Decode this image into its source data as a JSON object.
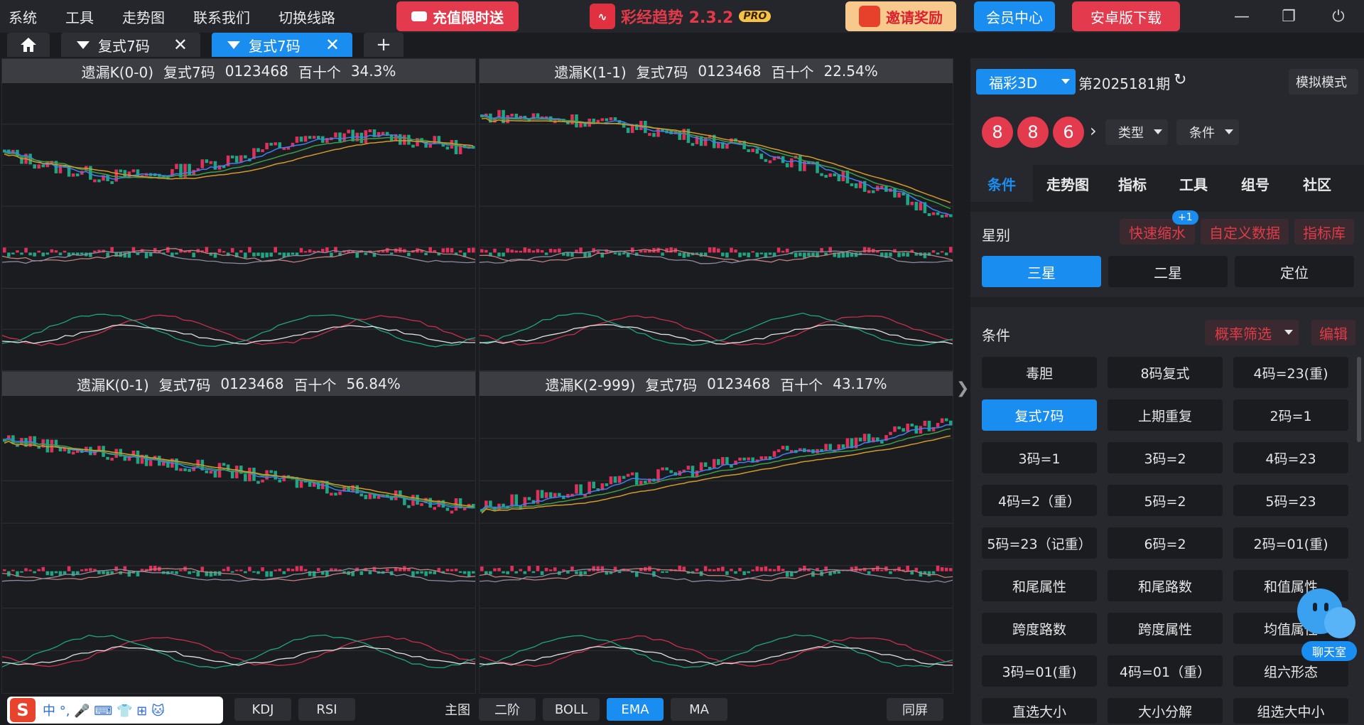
{
  "menu": [
    "系统",
    "工具",
    "走势图",
    "联系我们",
    "切换线路"
  ],
  "promo_left": "充值限时送",
  "app": {
    "name": "彩经趋势 2.3.2",
    "badge": "PRO"
  },
  "invite": "邀请奖励",
  "member_center": "会员中心",
  "android_download": "安卓版下载",
  "tabs": [
    {
      "label": "复式7码"
    },
    {
      "label": "复式7码"
    }
  ],
  "charts": [
    {
      "title": "遗漏K(0-0)",
      "mode": "复式7码",
      "digits": "0123468",
      "pos": "百十个",
      "pct": "34.3%"
    },
    {
      "title": "遗漏K(1-1)",
      "mode": "复式7码",
      "digits": "0123468",
      "pos": "百十个",
      "pct": "22.54%"
    },
    {
      "title": "遗漏K(0-1)",
      "mode": "复式7码",
      "digits": "0123468",
      "pos": "百十个",
      "pct": "56.84%"
    },
    {
      "title": "遗漏K(2-999)",
      "mode": "复式7码",
      "digits": "0123468",
      "pos": "百十个",
      "pct": "43.17%"
    }
  ],
  "bottom": {
    "left_btns": [
      "KDJ",
      "RSI"
    ],
    "main_label": "主图",
    "main_btns": [
      "二阶",
      "BOLL",
      "EMA",
      "MA"
    ],
    "active": "EMA",
    "same_screen": "同屏"
  },
  "ime": {
    "logo": "S",
    "text": "中 °, 🎤 ⌨ 👕 ⊞ 🐱"
  },
  "right": {
    "lottery": "福彩3D",
    "period": "第2025181期",
    "sim_mode": "模拟模式",
    "balls": [
      "8",
      "8",
      "6"
    ],
    "type_dd": "类型",
    "cond_dd": "条件",
    "tabs": [
      "条件",
      "走势图",
      "指标",
      "工具",
      "组号",
      "社区"
    ],
    "active_tab": "条件",
    "star_label": "星别",
    "quick": "快速缩水",
    "quick_badge": "+1",
    "custom": "自定义数据",
    "indicator_lib": "指标库",
    "stars": [
      "三星",
      "二星",
      "定位"
    ],
    "cond_label": "条件",
    "prob_filter": "概率筛选",
    "edit": "编辑",
    "grid": [
      "毒胆",
      "8码复式",
      "4码=23(重)",
      "复式7码",
      "上期重复",
      "2码=1",
      "3码=1",
      "3码=2",
      "4码=23",
      "4码=2（重）",
      "5码=2",
      "5码=23",
      "5码=23（记重）",
      "6码=2",
      "2码=01(重)",
      "和尾属性",
      "和尾路数",
      "和值属性",
      "跨度路数",
      "跨度属性",
      "均值属性",
      "3码=01(重)",
      "4码=01（重）",
      "组六形态",
      "直选大小",
      "大小分解",
      "组选大中小"
    ],
    "grid_active": "复式7码",
    "chat": "聊天室"
  },
  "colors": {
    "accent": "#1a8ef0",
    "red": "#e33a4e",
    "up": "#e0305a",
    "down": "#1fa582"
  }
}
